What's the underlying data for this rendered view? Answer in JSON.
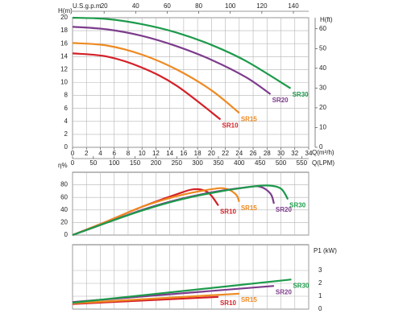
{
  "chart_data": [
    {
      "type": "line",
      "ylabel": "H(m)",
      "xlabel": "Q(m³/h)",
      "y2label": "H(ft)",
      "xlim": [
        0,
        34
      ],
      "xticks": [
        0,
        2,
        4,
        6,
        8,
        10,
        12,
        14,
        16,
        18,
        20,
        22,
        24,
        26,
        28,
        30,
        32,
        34
      ],
      "ylim": [
        0,
        20
      ],
      "yticks": [
        0,
        2,
        4,
        6,
        8,
        10,
        12,
        14,
        16,
        18,
        20
      ],
      "y2lim": [
        0,
        65.6
      ],
      "y2ticks": [
        0,
        10,
        20,
        30,
        40,
        50,
        60
      ],
      "secondary_x": [
        {
          "label": "Q(LPM)",
          "position": "bottom",
          "lim": [
            0,
            566.7
          ],
          "ticks": [
            0,
            50,
            100,
            150,
            200,
            250,
            300,
            350,
            400,
            450,
            500,
            550
          ]
        },
        {
          "label": "U.S.g.p.m",
          "position": "top",
          "lim": [
            0,
            149.7
          ],
          "ticks": [
            20,
            40,
            60,
            80,
            100,
            120,
            140
          ]
        }
      ],
      "grid": true,
      "yaxis_side": "left",
      "show_xtick_labels": true,
      "series": [
        {
          "name": "SR10",
          "color": "#d42027",
          "x": [
            0,
            5,
            10,
            15,
            21.3
          ],
          "values": [
            14.5,
            14,
            12.3,
            9.5,
            4.3
          ]
        },
        {
          "name": "SR15",
          "color": "#ee8a22",
          "x": [
            0,
            5,
            10,
            15,
            20,
            24
          ],
          "values": [
            16.1,
            15.7,
            14.3,
            12,
            8.8,
            5.3
          ]
        },
        {
          "name": "SR20",
          "color": "#7d3c8c",
          "x": [
            0,
            5,
            10,
            15,
            20,
            25,
            28.5
          ],
          "values": [
            18.6,
            18.2,
            17.2,
            15.6,
            13.5,
            10.8,
            8.2
          ]
        },
        {
          "name": "SR30",
          "color": "#1c9a4a",
          "x": [
            0,
            5,
            10,
            15,
            20,
            25,
            31.4
          ],
          "values": [
            20,
            19.8,
            19,
            17.7,
            15.8,
            13.3,
            9.1
          ]
        }
      ]
    },
    {
      "type": "line",
      "ylabel": "η%",
      "xlim": [
        0,
        34
      ],
      "xticks": [
        0,
        2,
        4,
        6,
        8,
        10,
        12,
        14,
        16,
        18,
        20,
        22,
        24,
        26,
        28,
        30,
        32,
        34
      ],
      "ylim": [
        0,
        100
      ],
      "yticks": [
        0,
        20,
        40,
        60,
        80
      ],
      "grid": true,
      "yaxis_side": "left",
      "show_xtick_labels": false,
      "series": [
        {
          "name": "SR10",
          "color": "#d42027",
          "x": [
            0,
            5,
            10,
            15,
            17.5,
            19.5,
            21
          ],
          "values": [
            0,
            22,
            45,
            65,
            73,
            68,
            47
          ]
        },
        {
          "name": "SR15",
          "color": "#ee8a22",
          "x": [
            0,
            5,
            10,
            15,
            20,
            22,
            23.5,
            24
          ],
          "values": [
            0,
            22,
            45,
            62,
            73,
            74,
            65,
            53
          ]
        },
        {
          "name": "SR20",
          "color": "#7d3c8c",
          "x": [
            0,
            5,
            10,
            15,
            20,
            25,
            27,
            28.5,
            29
          ],
          "values": [
            0,
            20,
            40,
            56,
            68,
            76,
            77,
            66,
            50
          ]
        },
        {
          "name": "SR30",
          "color": "#1c9a4a",
          "x": [
            0,
            5,
            10,
            15,
            20,
            25,
            28,
            30,
            31
          ],
          "values": [
            0,
            20,
            39,
            55,
            67,
            76,
            79,
            74,
            57
          ]
        }
      ]
    },
    {
      "type": "line",
      "ylabel": "P1 (kW)",
      "xlim": [
        0,
        34
      ],
      "xticks": [
        0,
        2,
        4,
        6,
        8,
        10,
        12,
        14,
        16,
        18,
        20,
        22,
        24,
        26,
        28,
        30,
        32,
        34
      ],
      "ylim": [
        0,
        5
      ],
      "yticks": [
        0,
        1,
        2,
        3
      ],
      "grid": true,
      "yaxis_side": "right",
      "show_xtick_labels": false,
      "series": [
        {
          "name": "SR10",
          "color": "#d42027",
          "x": [
            0,
            21
          ],
          "values": [
            0.4,
            0.95
          ]
        },
        {
          "name": "SR15",
          "color": "#ee8a22",
          "x": [
            0,
            24
          ],
          "values": [
            0.45,
            1.2
          ]
        },
        {
          "name": "SR20",
          "color": "#7d3c8c",
          "x": [
            0,
            29
          ],
          "values": [
            0.55,
            1.8
          ]
        },
        {
          "name": "SR30",
          "color": "#1c9a4a",
          "x": [
            0,
            31.5
          ],
          "values": [
            0.5,
            2.3
          ]
        }
      ]
    }
  ]
}
